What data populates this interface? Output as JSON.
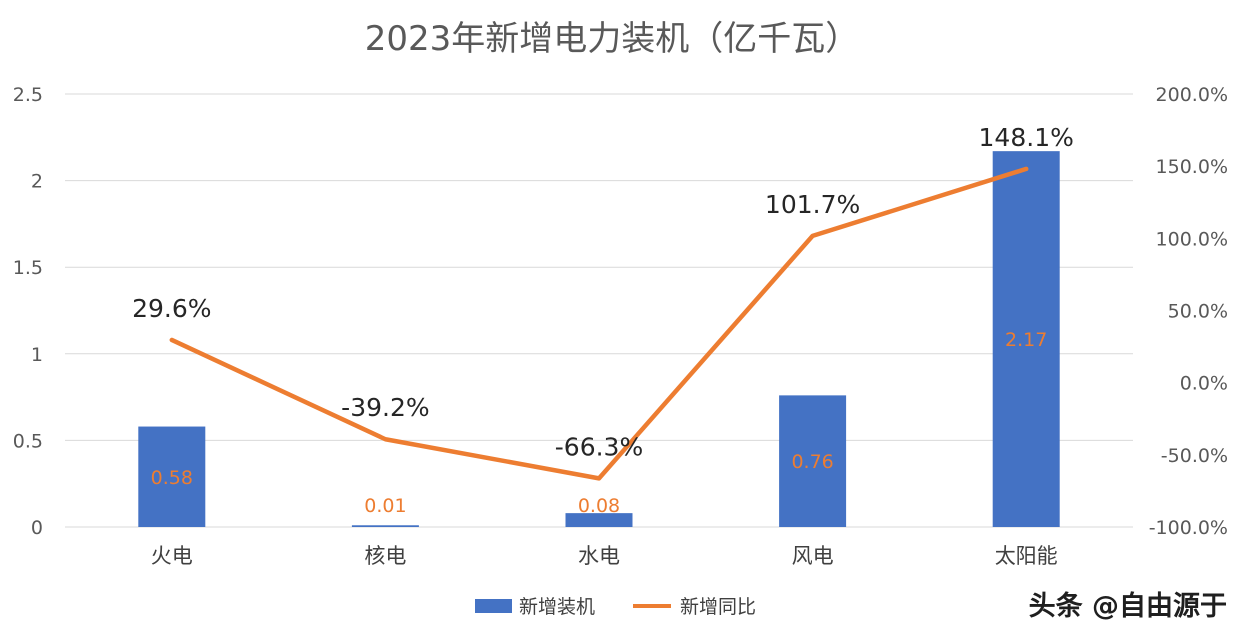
{
  "chart_data": {
    "type": "bar",
    "title": "2023年新增电力装机（亿千瓦）",
    "categories": [
      "火电",
      "核电",
      "水电",
      "风电",
      "太阳能"
    ],
    "series": [
      {
        "name": "新增装机",
        "type": "bar",
        "axis": "left",
        "values": [
          0.58,
          0.01,
          0.08,
          0.76,
          2.17
        ],
        "labels": [
          "0.58",
          "0.01",
          "0.08",
          "0.76",
          "2.17"
        ]
      },
      {
        "name": "新增同比",
        "type": "line",
        "axis": "right",
        "values": [
          29.6,
          -39.2,
          -66.3,
          101.7,
          148.1
        ],
        "labels": [
          "29.6%",
          "-39.2%",
          "-66.3%",
          "101.7%",
          "148.1%"
        ]
      }
    ],
    "y_left": {
      "min": 0,
      "max": 2.5,
      "ticks": [
        "0",
        "0.5",
        "1",
        "1.5",
        "2",
        "2.5"
      ]
    },
    "y_right": {
      "min": -100,
      "max": 200,
      "ticks": [
        "-100.0%",
        "-50.0%",
        "0.0%",
        "50.0%",
        "100.0%",
        "150.0%",
        "200.0%"
      ]
    },
    "grid": true,
    "legend_position": "bottom",
    "colors": {
      "bar": "#4472C4",
      "line": "#ED7D31",
      "bar_label": "#ED7D31",
      "grid": "#D9D9D9"
    }
  },
  "watermark": "头条 @自由源于"
}
